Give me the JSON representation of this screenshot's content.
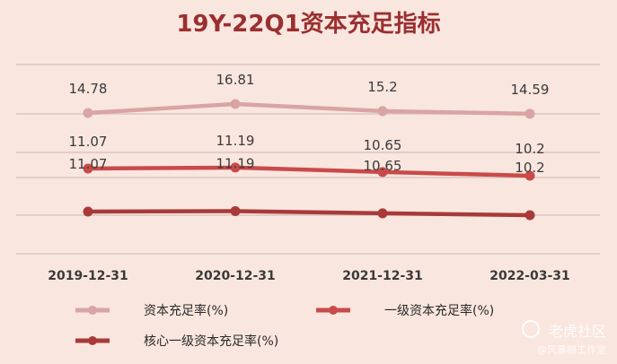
{
  "chart_data": {
    "type": "line",
    "title": "19Y-22Q1资本充足指标",
    "categories": [
      "2019-12-31",
      "2020-12-31",
      "2021-12-31",
      "2022-03-31"
    ],
    "series": [
      {
        "name": "资本充足率(%)",
        "values": [
          14.78,
          16.81,
          15.2,
          14.59
        ],
        "color": "#d8a4a4",
        "labels": [
          "14.78",
          "16.81",
          "15.2",
          "14.59"
        ]
      },
      {
        "name": "一级资本充足率(%)",
        "values": [
          11.07,
          11.19,
          10.65,
          10.2
        ],
        "color": "#c94a4a",
        "labels": [
          "11.07",
          "11.19",
          "10.65",
          "10.2"
        ]
      },
      {
        "name": "核心一级资本充足率(%)",
        "values": [
          11.07,
          11.19,
          10.65,
          10.2
        ],
        "color": "#a83a3a",
        "labels": [
          "11.07",
          "11.19",
          "10.65",
          "10.2"
        ]
      }
    ],
    "grid": true,
    "legend_position": "bottom"
  },
  "watermark": {
    "main": "老虎社区",
    "sub": "@风暴眼工作室"
  }
}
